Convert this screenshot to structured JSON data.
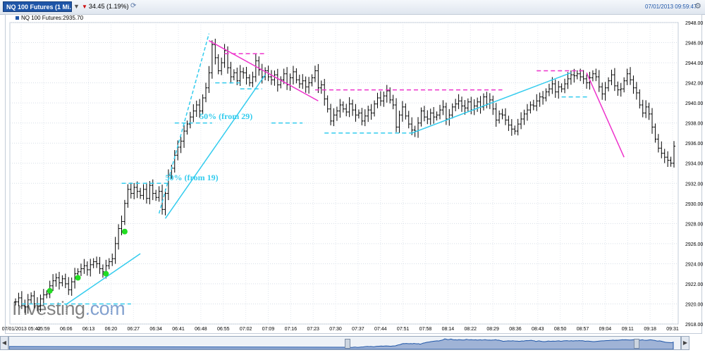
{
  "header": {
    "symbol_tab": "NQ 100 Futures (1 Mi...",
    "change": "34.45 (1.19%)",
    "datetime": "07/01/2013 09:59:47"
  },
  "icons": {
    "dropdown": "chevron-down-icon",
    "refresh": "refresh-icon",
    "settings": "gear-icon",
    "change_direction": "triangle-down-icon"
  },
  "colors": {
    "candle": "#000000",
    "cyan": "#33ccee",
    "magenta": "#ee33cc",
    "marker": "#22dd22",
    "brand": "#1f56a8"
  },
  "price_label": "NQ 100 Futures:2935.70",
  "watermark": {
    "main": "Investing",
    "suffix": ".com"
  },
  "chart_data": {
    "type": "ohlc",
    "interval": "1 minute",
    "title": "",
    "ylim": [
      2918,
      2948
    ],
    "y_ticks": [
      "2918.00",
      "2920.00",
      "2922.00",
      "2924.00",
      "2926.00",
      "2928.00",
      "2930.00",
      "2932.00",
      "2934.00",
      "2936.00",
      "2938.00",
      "2940.00",
      "2942.00",
      "2944.00",
      "2946.00",
      "2948.00"
    ],
    "x_ticks": [
      "07/01/2013 05:42",
      "05:59",
      "06:06",
      "06:13",
      "06:20",
      "06:27",
      "06:34",
      "06:41",
      "06:48",
      "06:55",
      "07:02",
      "07:09",
      "07:16",
      "07:23",
      "07:30",
      "07:37",
      "07:44",
      "07:51",
      "07:58",
      "08:14",
      "08:22",
      "08:29",
      "08:36",
      "08:43",
      "08:50",
      "08:57",
      "09:04",
      "09:11",
      "09:18",
      "09:31"
    ],
    "close_path": [
      2920.2,
      2920.6,
      2920.0,
      2919.7,
      2920.4,
      2920.8,
      2920.0,
      2919.8,
      2920.5,
      2920.9,
      2921.0,
      2921.8,
      2922.3,
      2922.6,
      2922.1,
      2922.5,
      2922.0,
      2921.4,
      2922.2,
      2923.0,
      2923.2,
      2923.5,
      2923.8,
      2923.4,
      2923.9,
      2924.2,
      2924.0,
      2923.5,
      2923.2,
      2923.8,
      2924.2,
      2924.5,
      2926.0,
      2927.5,
      2928.2,
      2930.0,
      2931.4,
      2931.0,
      2931.6,
      2931.2,
      2930.8,
      2931.4,
      2930.5,
      2931.8,
      2931.0,
      2930.6,
      2931.2,
      2929.4,
      2931.0,
      2932.8,
      2933.5,
      2934.8,
      2935.6,
      2936.2,
      2937.2,
      2937.9,
      2938.6,
      2939.2,
      2939.8,
      2939.2,
      2940.5,
      2941.5,
      2943.0,
      2945.8,
      2944.5,
      2943.2,
      2944.0,
      2945.2,
      2943.5,
      2942.6,
      2943.0,
      2942.2,
      2943.1,
      2943.0,
      2942.5,
      2942.0,
      2942.6,
      2944.2,
      2943.3,
      2942.6,
      2943.2,
      2942.6,
      2942.3,
      2942.8,
      2941.8,
      2942.3,
      2942.9,
      2941.8,
      2942.5,
      2943.1,
      2942.3,
      2941.9,
      2942.2,
      2941.6,
      2942.0,
      2942.5,
      2943.2,
      2941.5,
      2941.8,
      2940.4,
      2939.4,
      2938.2,
      2938.8,
      2939.2,
      2939.8,
      2939.4,
      2939.1,
      2939.9,
      2939.3,
      2938.8,
      2939.0,
      2938.2,
      2938.7,
      2939.3,
      2939.0,
      2939.9,
      2940.5,
      2940.2,
      2940.7,
      2941.2,
      2940.3,
      2939.8,
      2937.6,
      2938.8,
      2939.6,
      2938.7,
      2937.9,
      2937.3,
      2937.2,
      2938.0,
      2939.2,
      2938.6,
      2938.4,
      2939.0,
      2938.6,
      2938.8,
      2939.3,
      2939.6,
      2938.4,
      2938.8,
      2939.6,
      2939.9,
      2940.2,
      2939.7,
      2939.5,
      2940.1,
      2939.3,
      2939.7,
      2940.1,
      2939.6,
      2940.6,
      2939.9,
      2940.3,
      2939.4,
      2938.3,
      2938.9,
      2938.8,
      2938.3,
      2937.8,
      2937.4,
      2937.2,
      2937.9,
      2938.4,
      2938.9,
      2939.3,
      2939.8,
      2939.7,
      2940.2,
      2940.6,
      2940.5,
      2941.1,
      2941.4,
      2941.9,
      2941.1,
      2941.6,
      2941.4,
      2941.9,
      2942.4,
      2942.8,
      2942.7,
      2942.9,
      2942.6,
      2942.4,
      2942.0,
      2942.5,
      2942.9,
      2942.6,
      2941.6,
      2940.9,
      2941.5,
      2942.2,
      2942.8,
      2941.7,
      2941.3,
      2941.4,
      2942.2,
      2942.9,
      2942.3,
      2941.5,
      2941.0,
      2939.8,
      2939.0,
      2939.6,
      2938.9,
      2937.6,
      2936.4,
      2935.5,
      2935.0,
      2934.6,
      2934.3,
      2934.0,
      2935.7
    ],
    "markers": [
      {
        "t": 11,
        "price": 2921.3
      },
      {
        "t": 20,
        "price": 2922.6
      },
      {
        "t": 29,
        "price": 2923.0
      },
      {
        "t": 35,
        "price": 2927.2
      }
    ],
    "annotations": [
      {
        "text": "50% (from 29)",
        "t": 59,
        "price": 2938.4
      },
      {
        "text": "50% (from 19)",
        "t": 48,
        "price": 2932.3
      }
    ],
    "trendlines": [
      {
        "color": "cyan",
        "style": "solid",
        "from": [
          16,
          2919.9
        ],
        "to": [
          40,
          2925.0
        ]
      },
      {
        "color": "cyan",
        "style": "solid",
        "from": [
          48,
          2928.5
        ],
        "to": [
          80,
          2942.8
        ]
      },
      {
        "color": "cyan",
        "style": "dashed",
        "from": [
          46,
          2929.0
        ],
        "to": [
          62,
          2946.9
        ]
      },
      {
        "color": "cyan",
        "style": "solid",
        "from": [
          127,
          2937.0
        ],
        "to": [
          178,
          2943.0
        ]
      },
      {
        "color": "magenta",
        "style": "solid",
        "from": [
          62,
          2946.2
        ],
        "to": [
          97,
          2940.2
        ]
      },
      {
        "color": "magenta",
        "style": "solid",
        "from": [
          183,
          2943.0
        ],
        "to": [
          195,
          2934.6
        ]
      }
    ],
    "hlines": [
      {
        "color": "cyan",
        "style": "dashed",
        "y": 2920.0,
        "from": 2,
        "to": 37
      },
      {
        "color": "cyan",
        "style": "dashed",
        "y": 2932.0,
        "from": 34,
        "to": 49
      },
      {
        "color": "cyan",
        "style": "dashed",
        "y": 2938.0,
        "from": 51,
        "to": 63
      },
      {
        "color": "cyan",
        "style": "dashed",
        "y": 2942.0,
        "from": 64,
        "to": 72
      },
      {
        "color": "cyan",
        "style": "dashed",
        "y": 2941.4,
        "from": 72,
        "to": 79
      },
      {
        "color": "cyan",
        "style": "dashed",
        "y": 2938.0,
        "from": 82,
        "to": 92
      },
      {
        "color": "cyan",
        "style": "dashed",
        "y": 2937.0,
        "from": 99,
        "to": 128
      },
      {
        "color": "cyan",
        "style": "dashed",
        "y": 2940.6,
        "from": 175,
        "to": 184
      },
      {
        "color": "magenta",
        "style": "dashed",
        "y": 2944.9,
        "from": 67,
        "to": 80
      },
      {
        "color": "magenta",
        "style": "dashed",
        "y": 2941.3,
        "from": 96,
        "to": 156
      },
      {
        "color": "magenta",
        "style": "dashed",
        "y": 2943.2,
        "from": 167,
        "to": 182
      }
    ]
  }
}
